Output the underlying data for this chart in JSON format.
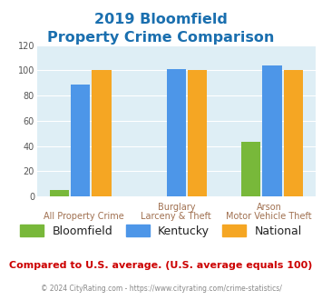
{
  "title_line1": "2019 Bloomfield",
  "title_line2": "Property Crime Comparison",
  "title_color": "#1a6faf",
  "cat_top": [
    "",
    "Burglary",
    "Arson"
  ],
  "cat_bot": [
    "All Property Crime",
    "Larceny & Theft",
    "Motor Vehicle Theft"
  ],
  "bloomfield": [
    5,
    0,
    43
  ],
  "kentucky": [
    89,
    101,
    104
  ],
  "national": [
    100,
    100,
    100
  ],
  "bloomfield_color": "#78b83a",
  "kentucky_color": "#4d96e8",
  "national_color": "#f5a623",
  "plot_bg": "#deeef5",
  "ylim": [
    0,
    120
  ],
  "yticks": [
    0,
    20,
    40,
    60,
    80,
    100,
    120
  ],
  "footnote": "Compared to U.S. average. (U.S. average equals 100)",
  "footnote_color": "#cc0000",
  "copyright": "© 2024 CityRating.com - https://www.cityrating.com/crime-statistics/",
  "copyright_color": "#888888",
  "copyright_link_color": "#4d96e8",
  "label_color": "#a07050",
  "legend_text_color": "#222222"
}
